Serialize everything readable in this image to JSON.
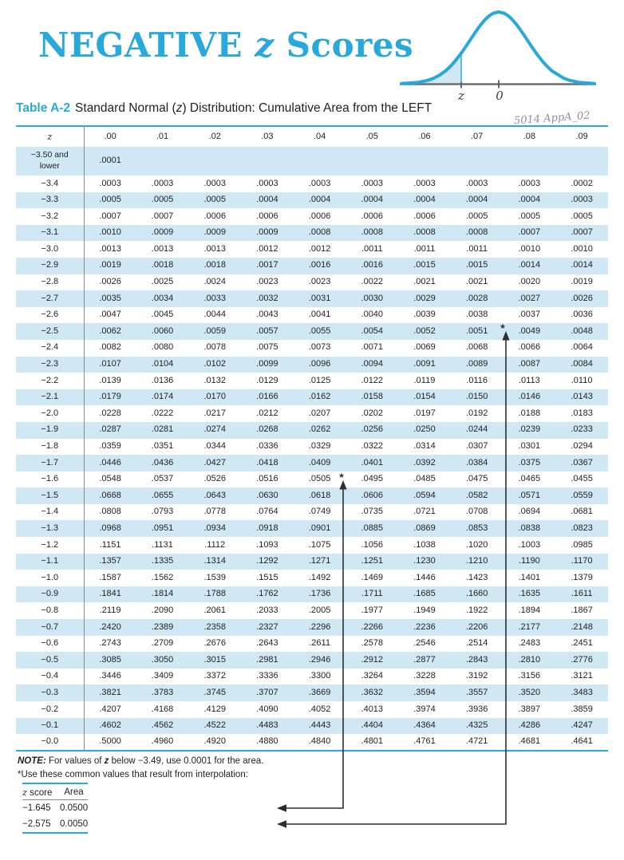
{
  "page": {
    "title": {
      "pre": "NEGATIVE",
      "z": "z",
      "post": "Scores"
    },
    "annotation": "5014 AppA_02"
  },
  "diagram": {
    "z_label": "z",
    "zero_label": "0"
  },
  "caption": {
    "label": "Table A-2",
    "pre": "Standard Normal (",
    "z": "z",
    "post": ") Distribution: Cumulative Area from the LEFT"
  },
  "table": {
    "col_headers": [
      "z",
      ".00",
      ".01",
      ".02",
      ".03",
      ".04",
      ".05",
      ".06",
      ".07",
      ".08",
      ".09"
    ],
    "rows": [
      {
        "z": "−3.50 and lower",
        "values": [
          ".0001",
          "",
          "",
          "",
          "",
          "",
          "",
          "",
          "",
          ""
        ]
      },
      {
        "z": "−3.4",
        "values": [
          ".0003",
          ".0003",
          ".0003",
          ".0003",
          ".0003",
          ".0003",
          ".0003",
          ".0003",
          ".0003",
          ".0002"
        ]
      },
      {
        "z": "−3.3",
        "values": [
          ".0005",
          ".0005",
          ".0005",
          ".0004",
          ".0004",
          ".0004",
          ".0004",
          ".0004",
          ".0004",
          ".0003"
        ]
      },
      {
        "z": "−3.2",
        "values": [
          ".0007",
          ".0007",
          ".0006",
          ".0006",
          ".0006",
          ".0006",
          ".0006",
          ".0005",
          ".0005",
          ".0005"
        ]
      },
      {
        "z": "−3.1",
        "values": [
          ".0010",
          ".0009",
          ".0009",
          ".0009",
          ".0008",
          ".0008",
          ".0008",
          ".0008",
          ".0007",
          ".0007"
        ]
      },
      {
        "z": "−3.0",
        "values": [
          ".0013",
          ".0013",
          ".0013",
          ".0012",
          ".0012",
          ".0011",
          ".0011",
          ".0011",
          ".0010",
          ".0010"
        ]
      },
      {
        "z": "−2.9",
        "values": [
          ".0019",
          ".0018",
          ".0018",
          ".0017",
          ".0016",
          ".0016",
          ".0015",
          ".0015",
          ".0014",
          ".0014"
        ]
      },
      {
        "z": "−2.8",
        "values": [
          ".0026",
          ".0025",
          ".0024",
          ".0023",
          ".0023",
          ".0022",
          ".0021",
          ".0021",
          ".0020",
          ".0019"
        ]
      },
      {
        "z": "−2.7",
        "values": [
          ".0035",
          ".0034",
          ".0033",
          ".0032",
          ".0031",
          ".0030",
          ".0029",
          ".0028",
          ".0027",
          ".0026"
        ]
      },
      {
        "z": "−2.6",
        "values": [
          ".0047",
          ".0045",
          ".0044",
          ".0043",
          ".0041",
          ".0040",
          ".0039",
          ".0038",
          ".0037",
          ".0036"
        ]
      },
      {
        "z": "−2.5",
        "values": [
          ".0062",
          ".0060",
          ".0059",
          ".0057",
          ".0055",
          ".0054",
          ".0052",
          ".0051",
          ".0049",
          ".0048"
        ]
      },
      {
        "z": "−2.4",
        "values": [
          ".0082",
          ".0080",
          ".0078",
          ".0075",
          ".0073",
          ".0071",
          ".0069",
          ".0068",
          ".0066",
          ".0064"
        ]
      },
      {
        "z": "−2.3",
        "values": [
          ".0107",
          ".0104",
          ".0102",
          ".0099",
          ".0096",
          ".0094",
          ".0091",
          ".0089",
          ".0087",
          ".0084"
        ]
      },
      {
        "z": "−2.2",
        "values": [
          ".0139",
          ".0136",
          ".0132",
          ".0129",
          ".0125",
          ".0122",
          ".0119",
          ".0116",
          ".0113",
          ".0110"
        ]
      },
      {
        "z": "−2.1",
        "values": [
          ".0179",
          ".0174",
          ".0170",
          ".0166",
          ".0162",
          ".0158",
          ".0154",
          ".0150",
          ".0146",
          ".0143"
        ]
      },
      {
        "z": "−2.0",
        "values": [
          ".0228",
          ".0222",
          ".0217",
          ".0212",
          ".0207",
          ".0202",
          ".0197",
          ".0192",
          ".0188",
          ".0183"
        ]
      },
      {
        "z": "−1.9",
        "values": [
          ".0287",
          ".0281",
          ".0274",
          ".0268",
          ".0262",
          ".0256",
          ".0250",
          ".0244",
          ".0239",
          ".0233"
        ]
      },
      {
        "z": "−1.8",
        "values": [
          ".0359",
          ".0351",
          ".0344",
          ".0336",
          ".0329",
          ".0322",
          ".0314",
          ".0307",
          ".0301",
          ".0294"
        ]
      },
      {
        "z": "−1.7",
        "values": [
          ".0446",
          ".0436",
          ".0427",
          ".0418",
          ".0409",
          ".0401",
          ".0392",
          ".0384",
          ".0375",
          ".0367"
        ]
      },
      {
        "z": "−1.6",
        "values": [
          ".0548",
          ".0537",
          ".0526",
          ".0516",
          ".0505",
          ".0495",
          ".0485",
          ".0475",
          ".0465",
          ".0455"
        ]
      },
      {
        "z": "−1.5",
        "values": [
          ".0668",
          ".0655",
          ".0643",
          ".0630",
          ".0618",
          ".0606",
          ".0594",
          ".0582",
          ".0571",
          ".0559"
        ]
      },
      {
        "z": "−1.4",
        "values": [
          ".0808",
          ".0793",
          ".0778",
          ".0764",
          ".0749",
          ".0735",
          ".0721",
          ".0708",
          ".0694",
          ".0681"
        ]
      },
      {
        "z": "−1.3",
        "values": [
          ".0968",
          ".0951",
          ".0934",
          ".0918",
          ".0901",
          ".0885",
          ".0869",
          ".0853",
          ".0838",
          ".0823"
        ]
      },
      {
        "z": "−1.2",
        "values": [
          ".1151",
          ".1131",
          ".1112",
          ".1093",
          ".1075",
          ".1056",
          ".1038",
          ".1020",
          ".1003",
          ".0985"
        ]
      },
      {
        "z": "−1.1",
        "values": [
          ".1357",
          ".1335",
          ".1314",
          ".1292",
          ".1271",
          ".1251",
          ".1230",
          ".1210",
          ".1190",
          ".1170"
        ]
      },
      {
        "z": "−1.0",
        "values": [
          ".1587",
          ".1562",
          ".1539",
          ".1515",
          ".1492",
          ".1469",
          ".1446",
          ".1423",
          ".1401",
          ".1379"
        ]
      },
      {
        "z": "−0.9",
        "values": [
          ".1841",
          ".1814",
          ".1788",
          ".1762",
          ".1736",
          ".1711",
          ".1685",
          ".1660",
          ".1635",
          ".1611"
        ]
      },
      {
        "z": "−0.8",
        "values": [
          ".2119",
          ".2090",
          ".2061",
          ".2033",
          ".2005",
          ".1977",
          ".1949",
          ".1922",
          ".1894",
          ".1867"
        ]
      },
      {
        "z": "−0.7",
        "values": [
          ".2420",
          ".2389",
          ".2358",
          ".2327",
          ".2296",
          ".2266",
          ".2236",
          ".2206",
          ".2177",
          ".2148"
        ]
      },
      {
        "z": "−0.6",
        "values": [
          ".2743",
          ".2709",
          ".2676",
          ".2643",
          ".2611",
          ".2578",
          ".2546",
          ".2514",
          ".2483",
          ".2451"
        ]
      },
      {
        "z": "−0.5",
        "values": [
          ".3085",
          ".3050",
          ".3015",
          ".2981",
          ".2946",
          ".2912",
          ".2877",
          ".2843",
          ".2810",
          ".2776"
        ]
      },
      {
        "z": "−0.4",
        "values": [
          ".3446",
          ".3409",
          ".3372",
          ".3336",
          ".3300",
          ".3264",
          ".3228",
          ".3192",
          ".3156",
          ".3121"
        ]
      },
      {
        "z": "−0.3",
        "values": [
          ".3821",
          ".3783",
          ".3745",
          ".3707",
          ".3669",
          ".3632",
          ".3594",
          ".3557",
          ".3520",
          ".3483"
        ]
      },
      {
        "z": "−0.2",
        "values": [
          ".4207",
          ".4168",
          ".4129",
          ".4090",
          ".4052",
          ".4013",
          ".3974",
          ".3936",
          ".3897",
          ".3859"
        ]
      },
      {
        "z": "−0.1",
        "values": [
          ".4602",
          ".4562",
          ".4522",
          ".4483",
          ".4443",
          ".4404",
          ".4364",
          ".4325",
          ".4286",
          ".4247"
        ]
      },
      {
        "z": "−0.0",
        "values": [
          ".5000",
          ".4960",
          ".4920",
          ".4880",
          ".4840",
          ".4801",
          ".4761",
          ".4721",
          ".4681",
          ".4641"
        ]
      }
    ],
    "markers": [
      {
        "symbol": "*"
      },
      {
        "symbol": "*"
      }
    ]
  },
  "notes": {
    "note_label": "NOTE:",
    "note_pre": "For values of ",
    "note_z": "z",
    "note_post": " below −3.49, use 0.0001 for the area.",
    "interpolation": "*Use these common values that result from interpolation:"
  },
  "mini_table": {
    "headers": {
      "z": "z",
      "score": " score",
      "area": "Area"
    },
    "rows": [
      {
        "z": "−1.645",
        "area": "0.0500"
      },
      {
        "z": "−2.575",
        "area": "0.0050"
      }
    ]
  },
  "colors": {
    "accent": "#29a9db",
    "row_shade": "#cfe8f4",
    "text": "#231f20",
    "gray_line": "#87898c",
    "axis_gray": "#6d6e71"
  }
}
